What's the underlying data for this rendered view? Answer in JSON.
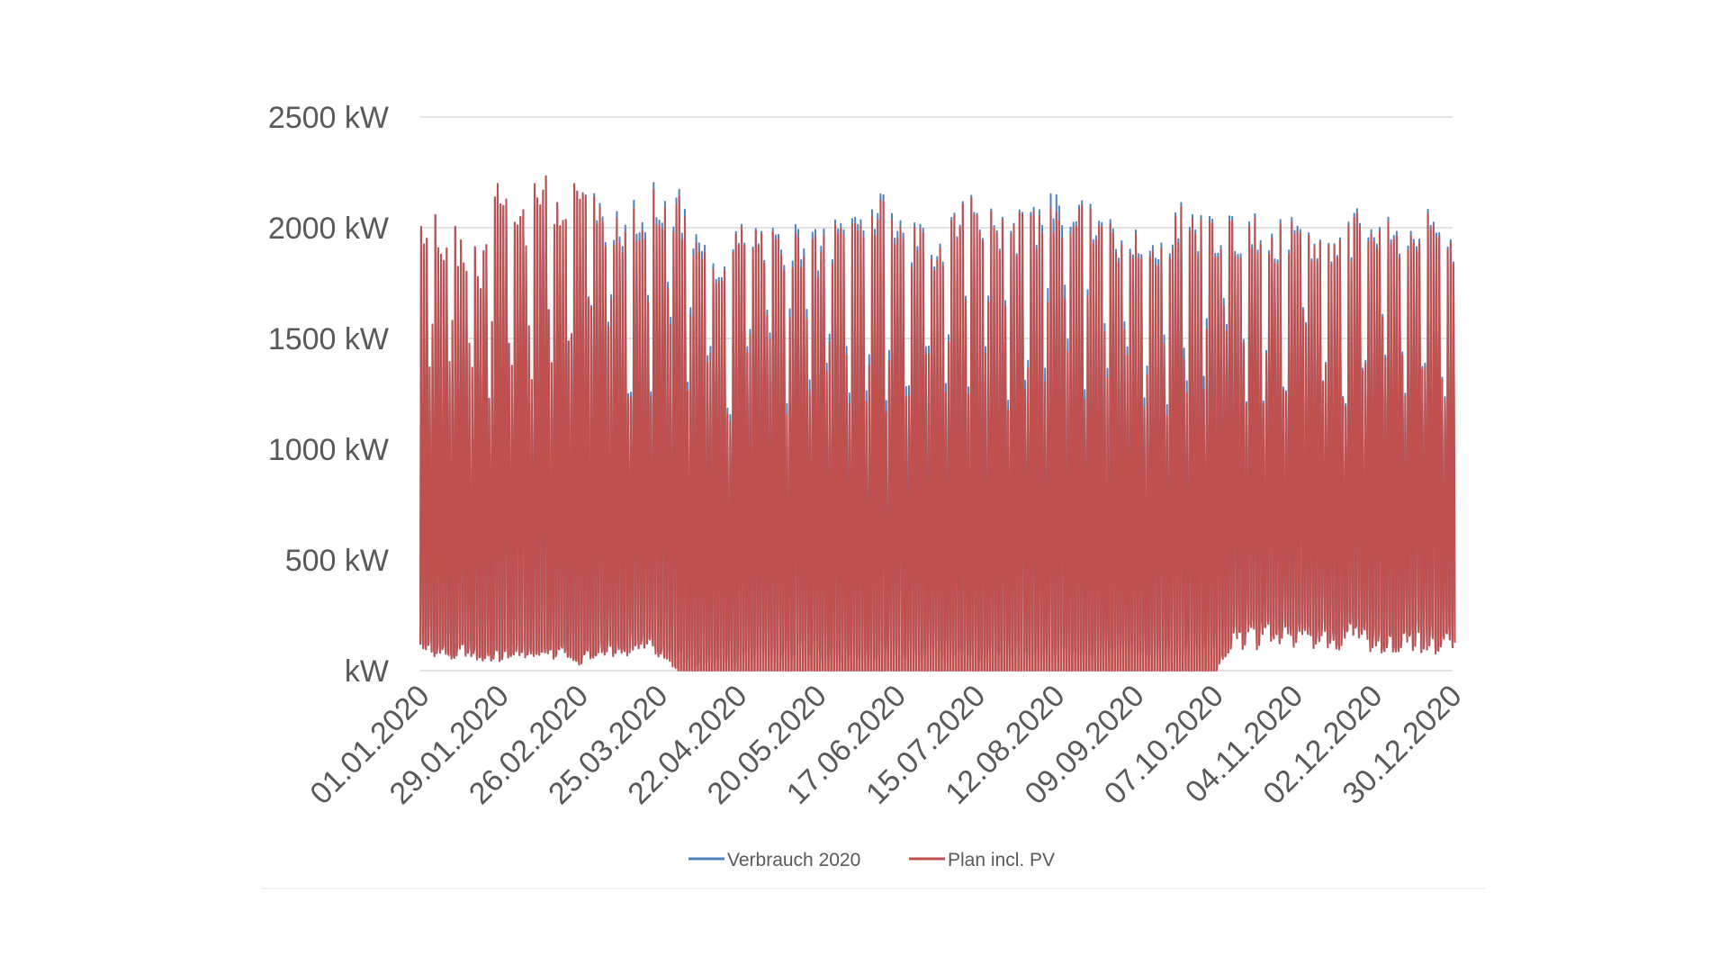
{
  "chart_data": {
    "type": "line",
    "title": "",
    "xlabel": "",
    "ylabel": "",
    "y_unit": "kW",
    "ylim": [
      0,
      2500
    ],
    "y_ticks": [
      0,
      500,
      1000,
      1500,
      2000,
      2500
    ],
    "y_tick_labels": [
      "kW",
      "500 kW",
      "1000 kW",
      "1500 kW",
      "2000 kW",
      "2500 kW"
    ],
    "x_range": [
      "01.01.2020",
      "30.12.2020"
    ],
    "x_tick_labels": [
      "01.01.2020",
      "29.01.2020",
      "26.02.2020",
      "25.03.2020",
      "22.04.2020",
      "20.05.2020",
      "17.06.2020",
      "15.07.2020",
      "12.08.2020",
      "09.09.2020",
      "07.10.2020",
      "04.11.2020",
      "02.12.2020",
      "30.12.2020"
    ],
    "grid": true,
    "legend_position": "bottom",
    "series": [
      {
        "name": "Verbrauch 2020",
        "color": "#4f81bd",
        "x": [
          "01.01.2020",
          "08.01.2020",
          "15.01.2020",
          "22.01.2020",
          "29.01.2020",
          "05.02.2020",
          "12.02.2020",
          "19.02.2020",
          "26.02.2020",
          "04.03.2020",
          "11.03.2020",
          "18.03.2020",
          "25.03.2020",
          "01.04.2020",
          "08.04.2020",
          "15.04.2020",
          "22.04.2020",
          "29.04.2020",
          "06.05.2020",
          "13.05.2020",
          "20.05.2020",
          "27.05.2020",
          "03.06.2020",
          "10.06.2020",
          "17.06.2020",
          "24.06.2020",
          "01.07.2020",
          "08.07.2020",
          "15.07.2020",
          "22.07.2020",
          "29.07.2020",
          "05.08.2020",
          "12.08.2020",
          "19.08.2020",
          "26.08.2020",
          "02.09.2020",
          "09.09.2020",
          "16.09.2020",
          "23.09.2020",
          "30.09.2020",
          "07.10.2020",
          "14.10.2020",
          "21.10.2020",
          "28.10.2020",
          "04.11.2020",
          "11.11.2020",
          "18.11.2020",
          "25.11.2020",
          "02.12.2020",
          "09.12.2020",
          "16.12.2020",
          "23.12.2020",
          "30.12.2020"
        ],
        "daily_peak_kW": [
          2130,
          2060,
          2000,
          1890,
          2280,
          2050,
          2260,
          2210,
          2300,
          2170,
          2080,
          2140,
          2230,
          2180,
          1990,
          1920,
          2030,
          2050,
          2000,
          2040,
          1990,
          2060,
          2120,
          2180,
          2090,
          2020,
          2000,
          2170,
          2190,
          2100,
          2080,
          2110,
          2250,
          2180,
          2120,
          2030,
          2090,
          1930,
          2140,
          2100,
          2090,
          2060,
          2080,
          2040,
          2050,
          2010,
          1990,
          2080,
          2120,
          2070,
          2020,
          2110,
          1990
        ],
        "daily_min_kW": [
          150,
          80,
          90,
          60,
          70,
          100,
          60,
          80,
          40,
          110,
          100,
          120,
          90,
          60,
          30,
          40,
          50,
          80,
          60,
          90,
          70,
          60,
          80,
          70,
          90,
          60,
          80,
          70,
          60,
          90,
          80,
          70,
          100,
          60,
          80,
          90,
          70,
          60,
          100,
          120,
          130,
          150,
          140,
          160,
          150,
          140,
          160,
          150,
          130,
          140,
          150,
          120,
          140
        ]
      },
      {
        "name": "Plan incl. PV",
        "color": "#c0504d",
        "x": [
          "01.01.2020",
          "08.01.2020",
          "15.01.2020",
          "22.01.2020",
          "29.01.2020",
          "05.02.2020",
          "12.02.2020",
          "19.02.2020",
          "26.02.2020",
          "04.03.2020",
          "11.03.2020",
          "18.03.2020",
          "25.03.2020",
          "01.04.2020",
          "08.04.2020",
          "15.04.2020",
          "22.04.2020",
          "29.04.2020",
          "06.05.2020",
          "13.05.2020",
          "20.05.2020",
          "27.05.2020",
          "03.06.2020",
          "10.06.2020",
          "17.06.2020",
          "24.06.2020",
          "01.07.2020",
          "08.07.2020",
          "15.07.2020",
          "22.07.2020",
          "29.07.2020",
          "05.08.2020",
          "12.08.2020",
          "19.08.2020",
          "26.08.2020",
          "02.09.2020",
          "09.09.2020",
          "16.09.2020",
          "23.09.2020",
          "30.09.2020",
          "07.10.2020",
          "14.10.2020",
          "21.10.2020",
          "28.10.2020",
          "04.11.2020",
          "11.11.2020",
          "18.11.2020",
          "25.11.2020",
          "02.12.2020",
          "09.12.2020",
          "16.12.2020",
          "23.12.2020",
          "30.12.2020"
        ],
        "daily_peak_kW": [
          2130,
          2060,
          2000,
          1890,
          2280,
          2050,
          2260,
          2210,
          2300,
          2150,
          2050,
          2100,
          2200,
          2150,
          1950,
          1900,
          2020,
          2040,
          1980,
          2000,
          1960,
          2040,
          2090,
          2150,
          2060,
          2000,
          1980,
          2160,
          2180,
          2090,
          2070,
          2090,
          2170,
          2160,
          2100,
          2010,
          2070,
          1900,
          2120,
          2080,
          2070,
          2040,
          2060,
          2020,
          2030,
          2000,
          1980,
          2060,
          2100,
          2050,
          2000,
          2090,
          1980
        ],
        "daily_min_kW": [
          150,
          80,
          90,
          60,
          70,
          100,
          60,
          80,
          40,
          110,
          100,
          120,
          90,
          0,
          0,
          0,
          0,
          0,
          0,
          0,
          0,
          0,
          0,
          0,
          0,
          0,
          0,
          0,
          0,
          0,
          0,
          0,
          0,
          0,
          0,
          0,
          0,
          0,
          0,
          0,
          0,
          150,
          140,
          160,
          150,
          140,
          160,
          150,
          130,
          140,
          150,
          120,
          140
        ]
      }
    ]
  }
}
